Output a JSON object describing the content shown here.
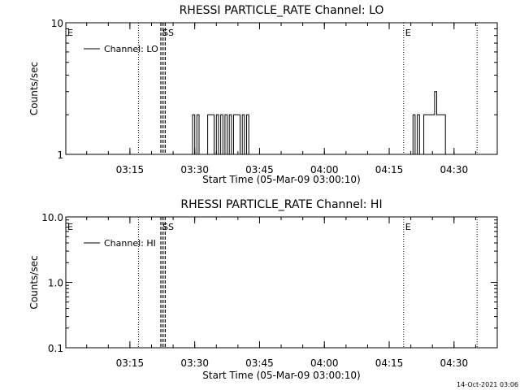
{
  "footer_timestamp": "14-Oct-2021 03:06",
  "chart_data": [
    {
      "type": "line",
      "title": "RHESSI PARTICLE_RATE Channel: LO",
      "xlabel": "Start Time (05-Mar-09 03:00:10)",
      "ylabel": "Counts/sec",
      "yscale": "log",
      "xlim": [
        "03:00:10",
        "04:40:00"
      ],
      "ylim": [
        1,
        10
      ],
      "xticks": [
        "03:15",
        "03:30",
        "03:45",
        "04:00",
        "04:15",
        "04:30"
      ],
      "yticks": [
        "1",
        "10"
      ],
      "grid": false,
      "legend_position": "top-left",
      "series": [
        {
          "name": "Channel: LO",
          "color": "#000000",
          "x": [
            "03:00:10",
            "03:29:00",
            "03:29:30",
            "03:30:00",
            "03:30:30",
            "03:31:00",
            "03:33:00",
            "03:33:30",
            "03:34:30",
            "03:35:00",
            "03:35:30",
            "03:36:00",
            "03:36:30",
            "03:37:00",
            "03:37:30",
            "03:38:00",
            "03:38:30",
            "03:39:00",
            "03:40:30",
            "03:41:00",
            "03:41:30",
            "03:42:00",
            "03:42:30",
            "04:20:00",
            "04:20:30",
            "04:21:00",
            "04:21:30",
            "04:22:00",
            "04:22:30",
            "04:23:00",
            "04:24:00",
            "04:25:00",
            "04:25:30",
            "04:26:00",
            "04:26:30",
            "04:27:00",
            "04:28:00",
            "04:28:30",
            "04:40:00"
          ],
          "values": [
            1,
            1,
            2,
            1,
            2,
            1,
            2,
            2,
            1,
            2,
            1,
            2,
            1,
            2,
            1,
            2,
            1,
            2,
            1,
            2,
            1,
            2,
            1,
            1,
            2,
            1,
            2,
            1,
            1,
            2,
            2,
            2,
            3,
            2,
            2,
            2,
            1,
            1,
            1
          ]
        }
      ],
      "markers": [
        {
          "label": "E",
          "time": "03:00:10",
          "style": "label"
        },
        {
          "time": "03:17:00",
          "style": "dotted"
        },
        {
          "label": "SS",
          "time": "03:22:10",
          "style": "dashed"
        },
        {
          "time": "03:22:40",
          "style": "dashed"
        },
        {
          "time": "03:23:10",
          "style": "dashed"
        },
        {
          "label": "E",
          "time": "04:18:20",
          "style": "dotted"
        },
        {
          "time": "04:35:20",
          "style": "dotted"
        }
      ]
    },
    {
      "type": "line",
      "title": "RHESSI PARTICLE_RATE Channel: HI",
      "xlabel": "Start Time (05-Mar-09 03:00:10)",
      "ylabel": "Counts/sec",
      "yscale": "log",
      "xlim": [
        "03:00:10",
        "04:40:00"
      ],
      "ylim": [
        0.1,
        10
      ],
      "xticks": [
        "03:15",
        "03:30",
        "03:45",
        "04:00",
        "04:15",
        "04:30"
      ],
      "yticks": [
        "0.1",
        "1.0",
        "10.0"
      ],
      "grid": false,
      "legend_position": "top-left",
      "series": [
        {
          "name": "Channel: HI",
          "color": "#000000",
          "x": [],
          "values": []
        }
      ],
      "markers": [
        {
          "label": "E",
          "time": "03:00:10",
          "style": "label"
        },
        {
          "time": "03:17:00",
          "style": "dotted"
        },
        {
          "label": "SS",
          "time": "03:22:10",
          "style": "dashed"
        },
        {
          "time": "03:22:40",
          "style": "dashed"
        },
        {
          "time": "03:23:10",
          "style": "dashed"
        },
        {
          "label": "E",
          "time": "04:18:20",
          "style": "dotted"
        },
        {
          "time": "04:35:20",
          "style": "dotted"
        }
      ]
    }
  ]
}
